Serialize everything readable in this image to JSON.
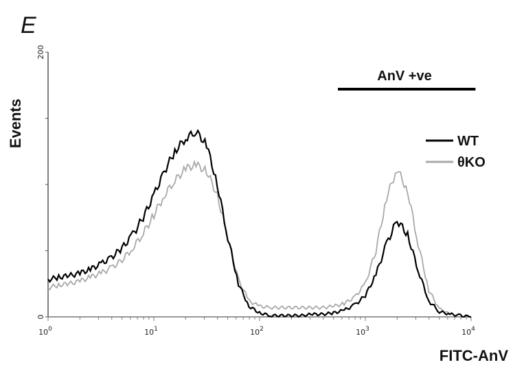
{
  "panel_label": "E",
  "chart_data": {
    "type": "line",
    "title": "",
    "xlabel": "FITC-AnV",
    "ylabel": "Events",
    "x_scale": "log",
    "xlim": [
      1,
      10000
    ],
    "ylim": [
      0,
      200
    ],
    "x_ticks": [
      {
        "base": "10",
        "exp": "0"
      },
      {
        "base": "10",
        "exp": "1"
      },
      {
        "base": "10",
        "exp": "2"
      },
      {
        "base": "10",
        "exp": "3"
      },
      {
        "base": "10",
        "exp": "4"
      }
    ],
    "y_tick_labels": [
      "0",
      "200"
    ],
    "y_minor_ticks": [
      50,
      100,
      150
    ],
    "grid": false,
    "legend_position": "right",
    "gate": {
      "label": "AnV +ve",
      "range": [
        550,
        11000
      ]
    },
    "x": [
      1,
      1.26,
      1.58,
      2,
      2.51,
      3.16,
      3.98,
      5.01,
      6.31,
      7.94,
      10,
      12.6,
      15.8,
      20,
      25.1,
      31.6,
      39.8,
      50.1,
      63.1,
      79.4,
      100,
      126,
      158,
      200,
      251,
      316,
      398,
      501,
      631,
      794,
      1000,
      1259,
      1585,
      1995,
      2512,
      3162,
      3981,
      5012,
      6310,
      7943,
      10000
    ],
    "series": [
      {
        "name": "WT",
        "color": "#000000",
        "values": [
          28,
          30,
          31,
          33,
          36,
          40,
          45,
          52,
          62,
          75,
          92,
          110,
          125,
          135,
          140,
          130,
          100,
          60,
          25,
          8,
          3,
          1,
          1,
          1,
          1,
          2,
          2,
          3,
          5,
          9,
          16,
          32,
          55,
          73,
          62,
          35,
          12,
          4,
          2,
          1,
          0
        ]
      },
      {
        "name": "θKO",
        "color": "#a8a8a8",
        "values": [
          22,
          24,
          25,
          27,
          30,
          33,
          37,
          43,
          52,
          63,
          77,
          92,
          103,
          112,
          115,
          110,
          92,
          60,
          28,
          12,
          8,
          7,
          7,
          7,
          7,
          7,
          7,
          8,
          10,
          15,
          25,
          50,
          90,
          112,
          95,
          55,
          20,
          6,
          2,
          1,
          0
        ]
      }
    ]
  }
}
